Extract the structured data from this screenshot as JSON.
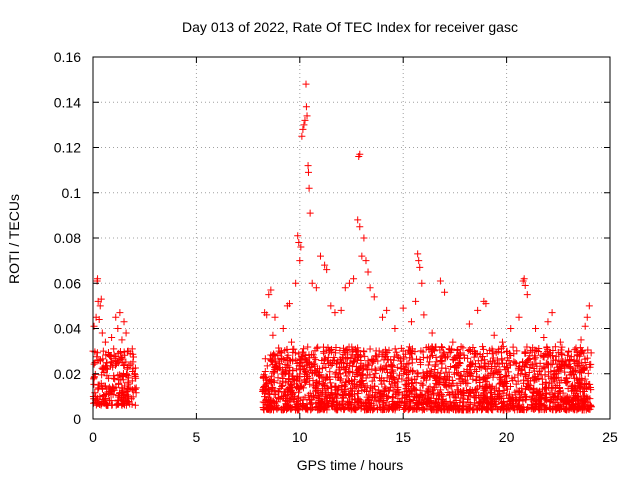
{
  "chart_data": {
    "type": "scatter",
    "title": "Day 013 of 2022, Rate Of TEC Index for receiver gasc",
    "xlabel": "GPS time / hours",
    "ylabel": "ROTI / TECUs",
    "xlim": [
      0,
      25
    ],
    "ylim": [
      0,
      0.16
    ],
    "x_ticks": [
      0,
      5,
      10,
      15,
      20,
      25
    ],
    "x_tick_labels": [
      "0",
      "5",
      "10",
      "15",
      "20",
      "25"
    ],
    "y_ticks": [
      0,
      0.02,
      0.04,
      0.06,
      0.08,
      0.1,
      0.12,
      0.14,
      0.16
    ],
    "y_tick_labels": [
      "0",
      "0.02",
      "0.04",
      "0.06",
      "0.08",
      "0.1",
      "0.12",
      "0.14",
      "0.16"
    ],
    "grid": true,
    "marker": "+",
    "marker_color": "#ff0000",
    "series": [
      {
        "points": [
          [
            0.0,
            0.03
          ],
          [
            0.05,
            0.041
          ],
          [
            0.1,
            0.025
          ],
          [
            0.15,
            0.045
          ],
          [
            0.2,
            0.061
          ],
          [
            0.22,
            0.062
          ],
          [
            0.25,
            0.052
          ],
          [
            0.3,
            0.044
          ],
          [
            0.35,
            0.05
          ],
          [
            0.4,
            0.053
          ],
          [
            0.45,
            0.038
          ],
          [
            0.5,
            0.03
          ],
          [
            0.6,
            0.034
          ],
          [
            0.7,
            0.022
          ],
          [
            0.8,
            0.028
          ],
          [
            0.9,
            0.036
          ],
          [
            1.0,
            0.031
          ],
          [
            1.1,
            0.045
          ],
          [
            1.2,
            0.04
          ],
          [
            1.3,
            0.047
          ],
          [
            1.4,
            0.035
          ],
          [
            1.5,
            0.043
          ],
          [
            1.6,
            0.038
          ],
          [
            1.7,
            0.03
          ],
          [
            1.8,
            0.029
          ],
          [
            1.9,
            0.031
          ],
          [
            2.0,
            0.02
          ],
          [
            8.3,
            0.047
          ],
          [
            8.4,
            0.046
          ],
          [
            8.5,
            0.055
          ],
          [
            8.6,
            0.057
          ],
          [
            8.7,
            0.037
          ],
          [
            8.8,
            0.045
          ],
          [
            9.0,
            0.03
          ],
          [
            9.2,
            0.04
          ],
          [
            9.4,
            0.05
          ],
          [
            9.5,
            0.051
          ],
          [
            9.6,
            0.034
          ],
          [
            9.8,
            0.06
          ],
          [
            9.9,
            0.081
          ],
          [
            9.95,
            0.078
          ],
          [
            10.0,
            0.07
          ],
          [
            10.05,
            0.076
          ],
          [
            10.1,
            0.125
          ],
          [
            10.15,
            0.128
          ],
          [
            10.2,
            0.13
          ],
          [
            10.25,
            0.132
          ],
          [
            10.3,
            0.148
          ],
          [
            10.32,
            0.138
          ],
          [
            10.35,
            0.134
          ],
          [
            10.4,
            0.112
          ],
          [
            10.42,
            0.109
          ],
          [
            10.45,
            0.102
          ],
          [
            10.5,
            0.091
          ],
          [
            10.6,
            0.06
          ],
          [
            10.8,
            0.058
          ],
          [
            11.0,
            0.072
          ],
          [
            11.2,
            0.068
          ],
          [
            11.3,
            0.066
          ],
          [
            11.5,
            0.05
          ],
          [
            11.7,
            0.047
          ],
          [
            12.0,
            0.048
          ],
          [
            12.2,
            0.058
          ],
          [
            12.4,
            0.06
          ],
          [
            12.6,
            0.062
          ],
          [
            12.8,
            0.088
          ],
          [
            12.9,
            0.085
          ],
          [
            12.85,
            0.116
          ],
          [
            12.9,
            0.117
          ],
          [
            13.0,
            0.072
          ],
          [
            13.1,
            0.08
          ],
          [
            13.2,
            0.07
          ],
          [
            13.3,
            0.065
          ],
          [
            13.4,
            0.058
          ],
          [
            13.6,
            0.054
          ],
          [
            14.0,
            0.045
          ],
          [
            14.2,
            0.048
          ],
          [
            14.6,
            0.04
          ],
          [
            15.0,
            0.049
          ],
          [
            15.4,
            0.043
          ],
          [
            15.6,
            0.052
          ],
          [
            15.7,
            0.073
          ],
          [
            15.75,
            0.07
          ],
          [
            15.8,
            0.067
          ],
          [
            15.9,
            0.06
          ],
          [
            16.0,
            0.046
          ],
          [
            16.4,
            0.038
          ],
          [
            16.8,
            0.061
          ],
          [
            17.0,
            0.056
          ],
          [
            17.4,
            0.034
          ],
          [
            17.8,
            0.032
          ],
          [
            18.2,
            0.042
          ],
          [
            18.6,
            0.048
          ],
          [
            18.9,
            0.052
          ],
          [
            19.0,
            0.051
          ],
          [
            19.4,
            0.037
          ],
          [
            19.8,
            0.034
          ],
          [
            20.2,
            0.04
          ],
          [
            20.6,
            0.045
          ],
          [
            20.8,
            0.061
          ],
          [
            20.85,
            0.062
          ],
          [
            20.9,
            0.059
          ],
          [
            21.0,
            0.055
          ],
          [
            21.4,
            0.04
          ],
          [
            21.8,
            0.036
          ],
          [
            22.0,
            0.043
          ],
          [
            22.2,
            0.047
          ],
          [
            22.6,
            0.034
          ],
          [
            23.0,
            0.03
          ],
          [
            23.4,
            0.026
          ],
          [
            23.6,
            0.035
          ],
          [
            23.8,
            0.041
          ],
          [
            23.9,
            0.045
          ],
          [
            24.0,
            0.05
          ]
        ]
      }
    ],
    "dense_bands": [
      {
        "x_range": [
          0.0,
          2.1
        ],
        "y_range": [
          0.006,
          0.03
        ],
        "count": 220
      },
      {
        "x_range": [
          8.2,
          24.1
        ],
        "y_range": [
          0.004,
          0.032
        ],
        "count": 2200
      }
    ]
  }
}
